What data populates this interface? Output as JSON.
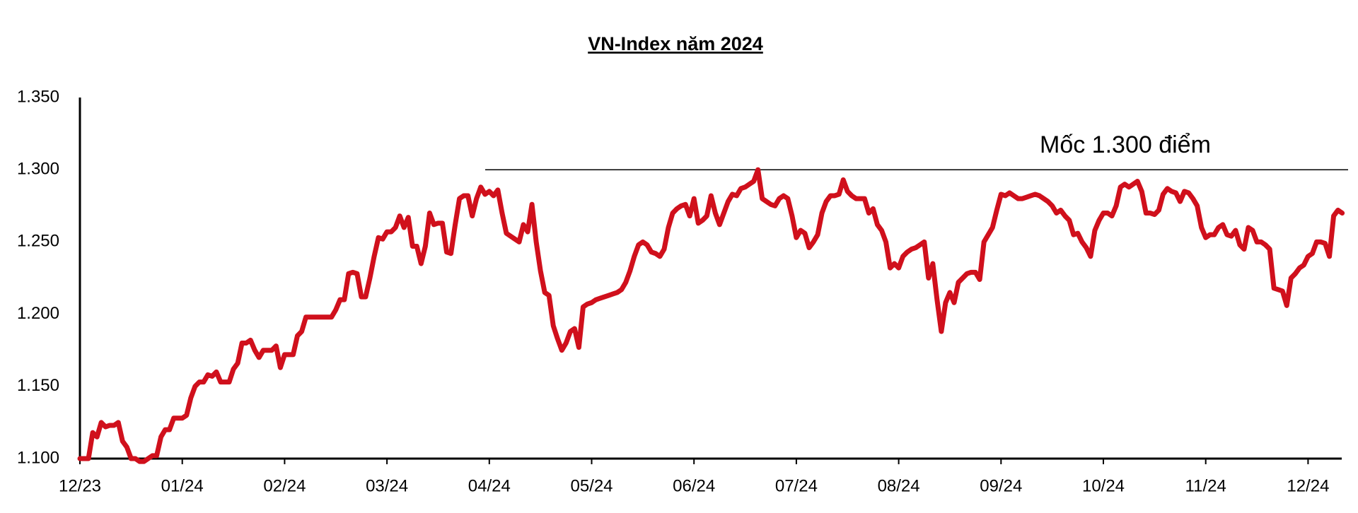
{
  "chart_data": {
    "type": "line",
    "title": "VN-Index năm 2024",
    "color": "#d0101c",
    "ylim": [
      1100,
      1350
    ],
    "yticks": [
      {
        "value": 1100,
        "label": "1.100"
      },
      {
        "value": 1150,
        "label": "1.150"
      },
      {
        "value": 1200,
        "label": "1.200"
      },
      {
        "value": 1250,
        "label": "1.250"
      },
      {
        "value": 1300,
        "label": "1.300"
      },
      {
        "value": 1350,
        "label": "1.350"
      }
    ],
    "annotation": {
      "text": "Mốc 1.300 điểm",
      "y": 1300
    },
    "categories": [
      "12/23",
      null,
      null,
      null,
      null,
      null,
      null,
      null,
      null,
      null,
      null,
      null,
      null,
      null,
      null,
      null,
      null,
      null,
      null,
      null,
      null,
      null,
      null,
      null,
      "01/24",
      null,
      null,
      null,
      null,
      null,
      null,
      null,
      null,
      null,
      null,
      null,
      null,
      null,
      null,
      null,
      null,
      null,
      null,
      null,
      null,
      null,
      null,
      null,
      "02/24",
      null,
      null,
      null,
      null,
      null,
      null,
      null,
      null,
      null,
      null,
      null,
      null,
      null,
      null,
      null,
      null,
      null,
      null,
      null,
      null,
      null,
      null,
      null,
      "03/24",
      null,
      null,
      null,
      null,
      null,
      null,
      null,
      null,
      null,
      null,
      null,
      null,
      null,
      null,
      null,
      null,
      null,
      null,
      null,
      null,
      null,
      null,
      null,
      "04/24",
      null,
      null,
      null,
      null,
      null,
      null,
      null,
      null,
      null,
      null,
      null,
      null,
      null,
      null,
      null,
      null,
      null,
      null,
      null,
      null,
      null,
      null,
      null,
      "05/24",
      null,
      null,
      null,
      null,
      null,
      null,
      null,
      null,
      null,
      null,
      null,
      null,
      null,
      null,
      null,
      null,
      null,
      null,
      null,
      null,
      null,
      null,
      null,
      "06/24",
      null,
      null,
      null,
      null,
      null,
      null,
      null,
      null,
      null,
      null,
      null,
      null,
      null,
      null,
      null,
      null,
      null,
      null,
      null,
      null,
      null,
      null,
      null,
      "07/24",
      null,
      null,
      null,
      null,
      null,
      null,
      null,
      null,
      null,
      null,
      null,
      null,
      null,
      null,
      null,
      null,
      null,
      null,
      null,
      null,
      null,
      null,
      null,
      "08/24",
      null,
      null,
      null,
      null,
      null,
      null,
      null,
      null,
      null,
      null,
      null,
      null,
      null,
      null,
      null,
      null,
      null,
      null,
      null,
      null,
      null,
      null,
      null,
      "09/24",
      null,
      null,
      null,
      null,
      null,
      null,
      null,
      null,
      null,
      null,
      null,
      null,
      null,
      null,
      null,
      null,
      null,
      null,
      null,
      null,
      null,
      null,
      null,
      "10/24",
      null,
      null,
      null,
      null,
      null,
      null,
      null,
      null,
      null,
      null,
      null,
      null,
      null,
      null,
      null,
      null,
      null,
      null,
      null,
      null,
      null,
      null,
      null,
      "11/24",
      null,
      null,
      null,
      null,
      null,
      null,
      null,
      null,
      null,
      null,
      null,
      null,
      null,
      null,
      null,
      null,
      null,
      null,
      null,
      null,
      null,
      null,
      null,
      "12/24",
      null,
      null,
      null,
      null,
      null,
      null,
      null,
      null
    ],
    "values": [
      1100,
      1100,
      1100,
      1118,
      1115,
      1125,
      1122,
      1123,
      1123,
      1125,
      1112,
      1108,
      1100,
      1100,
      1098,
      1098,
      1100,
      1102,
      1102,
      1115,
      1120,
      1120,
      1128,
      1128,
      1128,
      1130,
      1142,
      1150,
      1153,
      1153,
      1158,
      1157,
      1160,
      1153,
      1153,
      1153,
      1162,
      1166,
      1180,
      1180,
      1182,
      1175,
      1170,
      1175,
      1175,
      1175,
      1178,
      1163,
      1172,
      1172,
      1172,
      1185,
      1188,
      1198,
      1198,
      1198,
      1198,
      1198,
      1198,
      1198,
      1203,
      1210,
      1210,
      1228,
      1229,
      1228,
      1212,
      1212,
      1225,
      1240,
      1253,
      1252,
      1257,
      1257,
      1260,
      1268,
      1260,
      1267,
      1247,
      1247,
      1235,
      1247,
      1270,
      1262,
      1263,
      1263,
      1243,
      1242,
      1262,
      1280,
      1282,
      1282,
      1268,
      1280,
      1288,
      1283,
      1285,
      1282,
      1286,
      1270,
      1256,
      1254,
      1252,
      1250,
      1262,
      1257,
      1276,
      1250,
      1230,
      1215,
      1213,
      1192,
      1183,
      1175,
      1180,
      1188,
      1190,
      1177,
      1205,
      1207,
      1208,
      1210,
      1211,
      1212,
      1213,
      1214,
      1215,
      1217,
      1222,
      1230,
      1240,
      1248,
      1250,
      1248,
      1243,
      1242,
      1240,
      1245,
      1260,
      1270,
      1273,
      1275,
      1276,
      1268,
      1280,
      1263,
      1265,
      1268,
      1282,
      1270,
      1262,
      1270,
      1278,
      1283,
      1282,
      1287,
      1288,
      1290,
      1292,
      1300,
      1280,
      1278,
      1276,
      1275,
      1280,
      1282,
      1280,
      1268,
      1253,
      1258,
      1256,
      1246,
      1250,
      1255,
      1270,
      1278,
      1282,
      1282,
      1283,
      1293,
      1285,
      1282,
      1280,
      1280,
      1280,
      1270,
      1273,
      1262,
      1258,
      1250,
      1232,
      1235,
      1232,
      1240,
      1243,
      1245,
      1246,
      1248,
      1250,
      1225,
      1235,
      1210,
      1188,
      1208,
      1215,
      1208,
      1222,
      1225,
      1228,
      1229,
      1229,
      1224,
      1250,
      1255,
      1260,
      1272,
      1283,
      1282,
      1284,
      1282,
      1280,
      1280,
      1281,
      1282,
      1283,
      1282,
      1280,
      1278,
      1275,
      1270,
      1272,
      1268,
      1265,
      1255,
      1256,
      1250,
      1246,
      1240,
      1258,
      1265,
      1270,
      1270,
      1268,
      1275,
      1288,
      1290,
      1288,
      1290,
      1292,
      1285,
      1270,
      1270,
      1269,
      1272,
      1283,
      1287,
      1285,
      1284,
      1278,
      1285,
      1284,
      1280,
      1275,
      1260,
      1253,
      1255,
      1255,
      1260,
      1262,
      1255,
      1254,
      1258,
      1248,
      1245,
      1260,
      1258,
      1250,
      1250,
      1248,
      1245,
      1218,
      1217,
      1216,
      1206,
      1225,
      1228,
      1232,
      1234,
      1240,
      1242,
      1250,
      1250,
      1249,
      1240,
      1268,
      1272,
      1270
    ]
  }
}
